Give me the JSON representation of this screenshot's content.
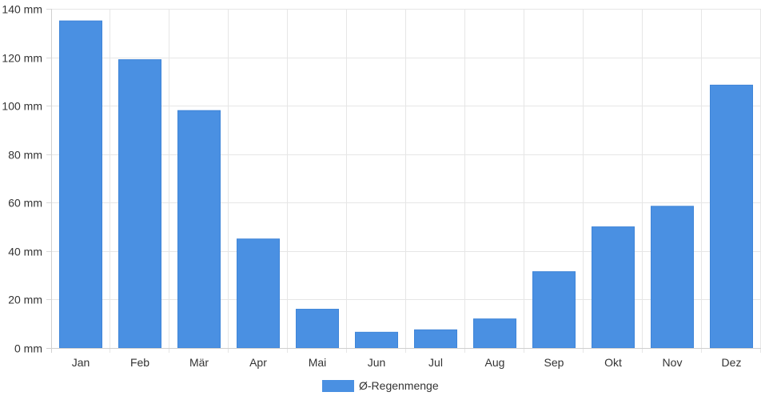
{
  "chart_data": {
    "type": "bar",
    "categories": [
      "Jan",
      "Feb",
      "Mär",
      "Apr",
      "Mai",
      "Jun",
      "Jul",
      "Aug",
      "Sep",
      "Okt",
      "Nov",
      "Dez"
    ],
    "series": [
      {
        "name": "Ø-Regenmenge",
        "values": [
          135,
          119,
          98,
          45,
          16,
          6.5,
          7.5,
          12,
          31.5,
          50,
          58.5,
          108.5
        ],
        "color": "#4a90e2"
      }
    ],
    "y_ticks": [
      "0 mm",
      "20 mm",
      "40 mm",
      "60 mm",
      "80 mm",
      "100 mm",
      "120 mm",
      "140 mm"
    ],
    "ylim": [
      0,
      140
    ],
    "y_step": 20,
    "grid": true,
    "legend_position": "bottom"
  }
}
